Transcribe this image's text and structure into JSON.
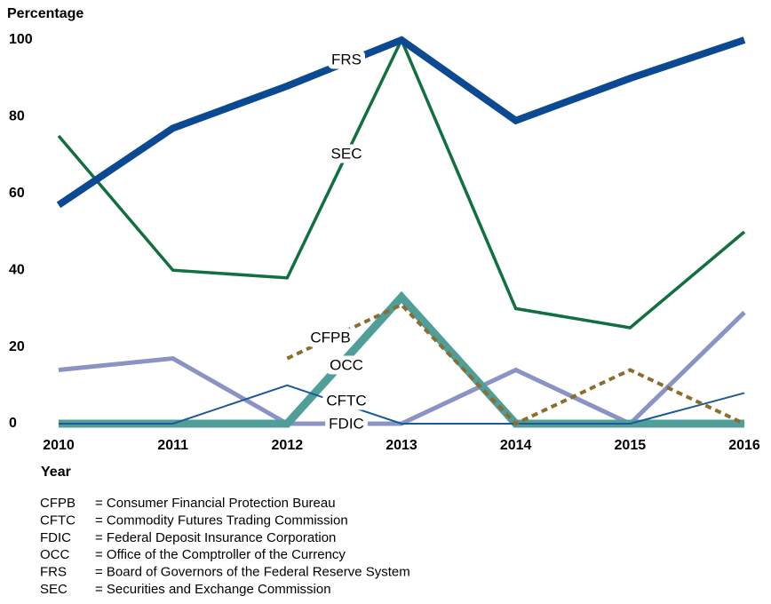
{
  "chart_data": {
    "type": "line",
    "title": "Percentage",
    "x_label": "Year",
    "categories": [
      "2010",
      "2011",
      "2012",
      "2013",
      "2014",
      "2015",
      "2016"
    ],
    "series": [
      {
        "name": "FRS",
        "color": "#0b4a93",
        "values": [
          57,
          77,
          88,
          100,
          79,
          90,
          100
        ]
      },
      {
        "name": "SEC",
        "color": "#11703f",
        "values": [
          75,
          40,
          38,
          100,
          30,
          25,
          50
        ]
      },
      {
        "name": "CFPB",
        "color": "#8b6d2e",
        "values": [
          null,
          null,
          17,
          31,
          0,
          14,
          0
        ]
      },
      {
        "name": "CFTC",
        "color": "#1a5a9a",
        "values": [
          0,
          0,
          10,
          0,
          0,
          0,
          8
        ]
      },
      {
        "name": "OCC",
        "color": "#4f9e98",
        "values": [
          0,
          0,
          0,
          33,
          0,
          0,
          0
        ]
      },
      {
        "name": "FDIC",
        "color": "#8b93c4",
        "values": [
          14,
          17,
          0,
          0,
          14,
          0,
          29
        ]
      }
    ],
    "ylim": [
      0,
      100
    ],
    "yticks": [
      0,
      20,
      40,
      60,
      80,
      100
    ],
    "grid": false,
    "notes": [
      {
        "abbr": "CFPB",
        "text": "= Consumer Financial Protection Bureau"
      },
      {
        "abbr": "CFTC",
        "text": "= Commodity Futures Trading Commission"
      },
      {
        "abbr": "FDIC",
        "text": "= Federal Deposit Insurance Corporation"
      },
      {
        "abbr": "OCC",
        "text": "= Office of the Comptroller of the Currency"
      },
      {
        "abbr": "FRS",
        "text": "= Board of Governors of the Federal Reserve System"
      },
      {
        "abbr": "SEC",
        "text": "= Securities and Exchange Commission"
      }
    ]
  }
}
